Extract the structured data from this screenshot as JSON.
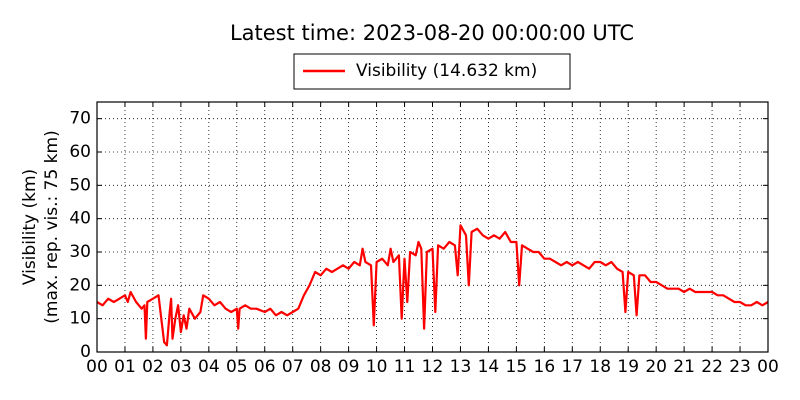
{
  "chart_data": {
    "type": "line",
    "title": "Latest time: 2023-08-20 00:00:00 UTC",
    "ylabel": [
      "Visibility (km)",
      "(max. rep. vis.: 75 km)"
    ],
    "xlim": [
      0,
      24
    ],
    "ylim": [
      0,
      75
    ],
    "xticks": [
      {
        "value": 0,
        "label": "00"
      },
      {
        "value": 1,
        "label": "01"
      },
      {
        "value": 2,
        "label": "02"
      },
      {
        "value": 3,
        "label": "03"
      },
      {
        "value": 4,
        "label": "04"
      },
      {
        "value": 5,
        "label": "05"
      },
      {
        "value": 6,
        "label": "06"
      },
      {
        "value": 7,
        "label": "07"
      },
      {
        "value": 8,
        "label": "08"
      },
      {
        "value": 9,
        "label": "09"
      },
      {
        "value": 10,
        "label": "10"
      },
      {
        "value": 11,
        "label": "11"
      },
      {
        "value": 12,
        "label": "12"
      },
      {
        "value": 13,
        "label": "13"
      },
      {
        "value": 14,
        "label": "14"
      },
      {
        "value": 15,
        "label": "15"
      },
      {
        "value": 16,
        "label": "16"
      },
      {
        "value": 17,
        "label": "17"
      },
      {
        "value": 18,
        "label": "18"
      },
      {
        "value": 19,
        "label": "19"
      },
      {
        "value": 20,
        "label": "20"
      },
      {
        "value": 21,
        "label": "21"
      },
      {
        "value": 22,
        "label": "22"
      },
      {
        "value": 23,
        "label": "23"
      },
      {
        "value": 24,
        "label": "00"
      }
    ],
    "yticks": [
      0,
      10,
      20,
      30,
      40,
      50,
      60,
      70
    ],
    "grid": true,
    "legend": "top",
    "x": [
      0,
      0.2,
      0.4,
      0.6,
      0.8,
      1.0,
      1.1,
      1.2,
      1.4,
      1.6,
      1.7,
      1.75,
      1.8,
      2.0,
      2.2,
      2.3,
      2.4,
      2.5,
      2.6,
      2.65,
      2.7,
      2.8,
      2.9,
      3.0,
      3.1,
      3.2,
      3.3,
      3.5,
      3.7,
      3.8,
      4.0,
      4.2,
      4.4,
      4.6,
      4.8,
      5.0,
      5.05,
      5.1,
      5.3,
      5.5,
      5.7,
      6.0,
      6.2,
      6.4,
      6.6,
      6.8,
      7.0,
      7.2,
      7.4,
      7.6,
      7.8,
      8.0,
      8.2,
      8.4,
      8.6,
      8.8,
      9.0,
      9.2,
      9.4,
      9.5,
      9.6,
      9.8,
      9.9,
      10.0,
      10.2,
      10.4,
      10.5,
      10.6,
      10.8,
      10.9,
      11.0,
      11.1,
      11.2,
      11.4,
      11.5,
      11.6,
      11.7,
      11.8,
      12.0,
      12.1,
      12.2,
      12.4,
      12.6,
      12.8,
      12.9,
      13.0,
      13.2,
      13.3,
      13.4,
      13.6,
      13.8,
      14.0,
      14.2,
      14.4,
      14.6,
      14.8,
      15.0,
      15.1,
      15.2,
      15.4,
      15.6,
      15.8,
      16.0,
      16.2,
      16.4,
      16.6,
      16.8,
      17.0,
      17.2,
      17.4,
      17.6,
      17.8,
      18.0,
      18.2,
      18.4,
      18.6,
      18.8,
      18.9,
      19.0,
      19.2,
      19.3,
      19.4,
      19.6,
      19.8,
      20.0,
      20.2,
      20.4,
      20.6,
      20.8,
      21.0,
      21.2,
      21.4,
      21.6,
      21.8,
      22.0,
      22.2,
      22.4,
      22.6,
      22.8,
      23.0,
      23.2,
      23.4,
      23.6,
      23.8,
      24.0
    ],
    "series": [
      {
        "name": "Visibility (14.632 km)",
        "color": "#ff0000",
        "values": [
          15,
          14,
          16,
          15,
          16,
          17,
          15,
          18,
          15,
          13,
          14,
          4,
          15,
          16,
          17,
          10,
          3,
          2,
          12,
          16,
          4,
          10,
          14,
          6,
          11,
          7,
          13,
          10,
          12,
          17,
          16,
          14,
          15,
          13,
          12,
          13,
          7,
          13,
          14,
          13,
          13,
          12,
          13,
          11,
          12,
          11,
          12,
          13,
          17,
          20,
          24,
          23,
          25,
          24,
          25,
          26,
          25,
          27,
          26,
          31,
          27,
          26,
          8,
          27,
          28,
          26,
          31,
          27,
          29,
          10,
          28,
          15,
          30,
          29,
          33,
          31,
          7,
          30,
          31,
          12,
          32,
          31,
          33,
          32,
          23,
          38,
          35,
          20,
          36,
          37,
          35,
          34,
          35,
          34,
          36,
          33,
          33,
          20,
          32,
          31,
          30,
          30,
          28,
          28,
          27,
          26,
          27,
          26,
          27,
          26,
          25,
          27,
          27,
          26,
          27,
          25,
          24,
          12,
          24,
          23,
          11,
          23,
          23,
          21,
          21,
          20,
          19,
          19,
          19,
          18,
          19,
          18,
          18,
          18,
          18,
          17,
          17,
          16,
          15,
          15,
          14,
          14,
          15,
          14,
          15
        ]
      }
    ]
  }
}
